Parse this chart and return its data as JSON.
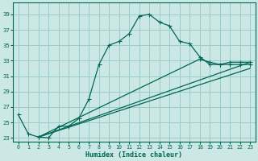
{
  "xlabel": "Humidex (Indice chaleur)",
  "ylabel": "",
  "bg_color": "#cce8e4",
  "grid_color": "#99cccc",
  "line_color": "#006655",
  "ylim": [
    22.5,
    40.5
  ],
  "xlim": [
    -0.5,
    23.5
  ],
  "yticks": [
    23,
    25,
    27,
    29,
    31,
    33,
    35,
    37,
    39
  ],
  "xticks": [
    0,
    1,
    2,
    3,
    4,
    5,
    6,
    7,
    8,
    9,
    10,
    11,
    12,
    13,
    14,
    15,
    16,
    17,
    18,
    19,
    20,
    21,
    22,
    23
  ],
  "curve1_x": [
    0,
    1,
    2,
    3,
    4,
    5,
    6,
    7,
    8,
    9,
    10,
    11,
    12,
    13,
    14,
    15,
    16,
    17,
    18,
    19,
    20,
    21,
    22,
    23
  ],
  "curve1_y": [
    26.0,
    23.5,
    23.1,
    23.0,
    24.5,
    24.5,
    25.5,
    28.0,
    32.5,
    35.0,
    35.5,
    36.5,
    38.8,
    39.0,
    38.0,
    37.5,
    35.5,
    35.2,
    33.5,
    32.5,
    32.5,
    32.5,
    32.5,
    32.5
  ],
  "curve2_x": [
    2,
    23
  ],
  "curve2_y": [
    23.1,
    32.8
  ],
  "curve3_x": [
    2,
    18,
    19,
    20,
    21,
    22,
    23
  ],
  "curve3_y": [
    23.1,
    33.2,
    32.8,
    32.5,
    32.8,
    32.8,
    32.8
  ],
  "curve4_x": [
    2,
    23
  ],
  "curve4_y": [
    23.1,
    32.0
  ]
}
